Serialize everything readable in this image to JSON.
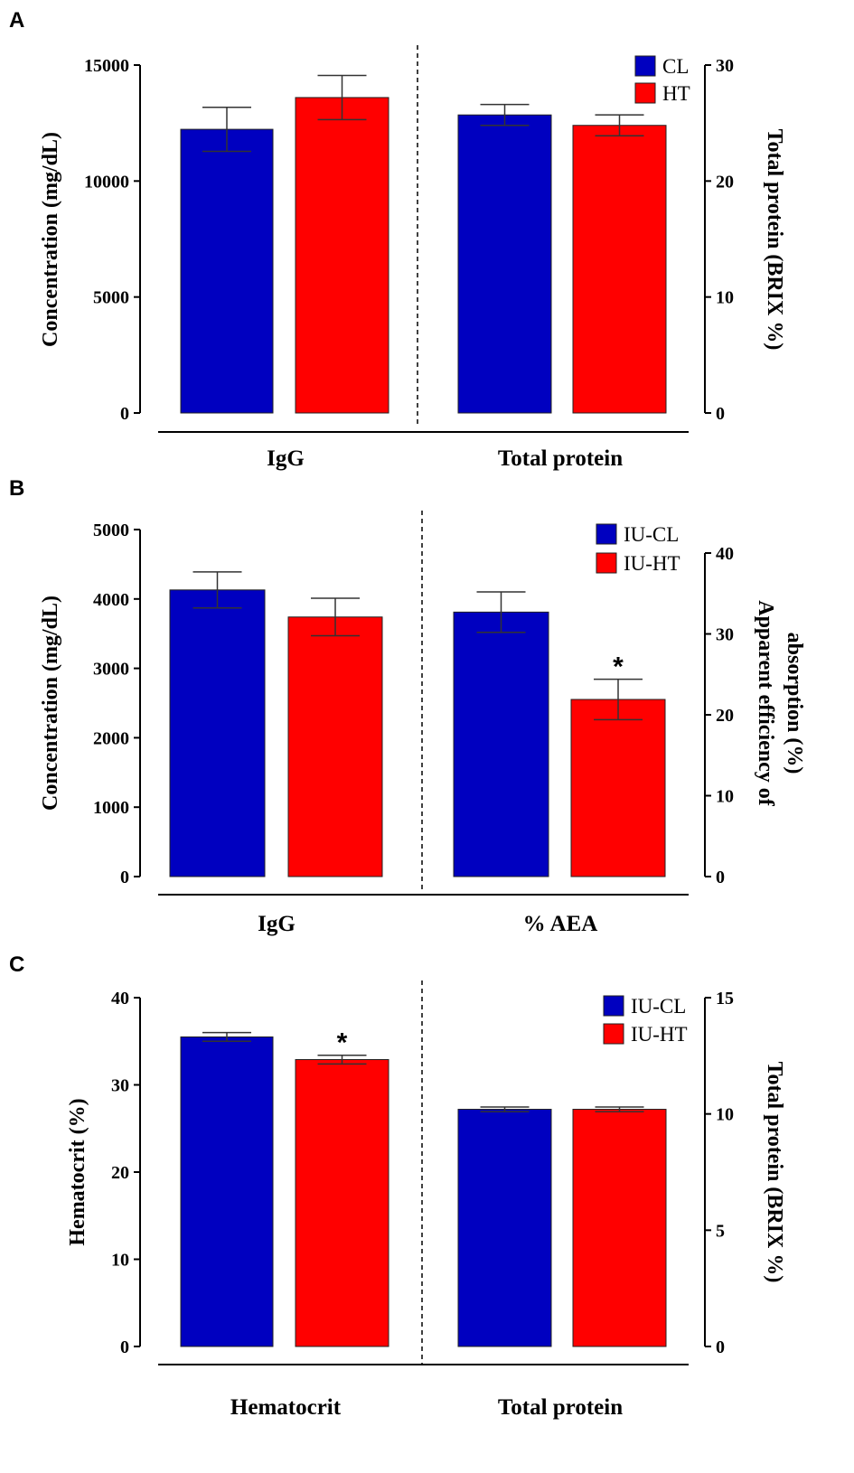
{
  "colors": {
    "CL": "#0000c0",
    "HT": "#ff0000"
  },
  "chart_data": [
    {
      "panel": "A",
      "type": "bar",
      "legend": [
        "CL",
        "HT"
      ],
      "legend_placement": "top-right",
      "categories": [
        "IgG",
        "Total protein"
      ],
      "left_axis": {
        "label": "Concentration (mg/dL)",
        "ylim": [
          0,
          15000
        ],
        "ticks": [
          0,
          5000,
          10000,
          15000
        ]
      },
      "right_axis": {
        "label": [
          "Total protein (BRIX %)"
        ],
        "ylim": [
          0,
          30
        ],
        "ticks": [
          0,
          10,
          20,
          30
        ]
      },
      "series": [
        {
          "name": "CL",
          "values": [
            12230,
            25.7
          ],
          "errors": [
            950,
            0.9
          ]
        },
        {
          "name": "HT",
          "values": [
            13600,
            24.8
          ],
          "errors": [
            950,
            0.9
          ]
        }
      ],
      "significance": [
        null,
        null
      ]
    },
    {
      "panel": "B",
      "type": "bar",
      "legend": [
        "IU-CL",
        "IU-HT"
      ],
      "legend_placement": "top-right",
      "categories": [
        "IgG",
        "% AEA"
      ],
      "left_axis": {
        "label": "Concentration  (mg/dL)",
        "ylim": [
          0,
          5000
        ],
        "ticks": [
          0,
          1000,
          2000,
          3000,
          4000,
          5000
        ]
      },
      "right_axis": {
        "label": [
          "Apparent efficiency of",
          "absorption (%)"
        ],
        "ylim": [
          0,
          40
        ],
        "ticks": [
          0,
          10,
          20,
          30,
          40
        ]
      },
      "series": [
        {
          "name": "IU-CL",
          "values": [
            4130,
            32.7
          ],
          "errors": [
            260,
            2.5
          ]
        },
        {
          "name": "IU-HT",
          "values": [
            3740,
            21.9
          ],
          "errors": [
            270,
            2.5
          ]
        }
      ],
      "significance": [
        null,
        "*"
      ]
    },
    {
      "panel": "C",
      "type": "bar",
      "legend": [
        "IU-CL",
        "IU-HT"
      ],
      "legend_placement": "top-right",
      "categories": [
        "Hematocrit",
        "Total protein"
      ],
      "left_axis": {
        "label": "Hematocrit  (%)",
        "ylim": [
          0,
          40
        ],
        "ticks": [
          0,
          10,
          20,
          30,
          40
        ]
      },
      "right_axis": {
        "label": [
          "Total protein (BRIX %)"
        ],
        "ylim": [
          0,
          15
        ],
        "ticks": [
          0,
          5,
          10,
          15
        ]
      },
      "series": [
        {
          "name": "IU-CL",
          "values": [
            35.5,
            10.2
          ],
          "errors": [
            0.5,
            0.1
          ]
        },
        {
          "name": "IU-HT",
          "values": [
            32.9,
            10.2
          ],
          "errors": [
            0.5,
            0.1
          ]
        }
      ],
      "significance": [
        "*",
        null
      ]
    }
  ]
}
